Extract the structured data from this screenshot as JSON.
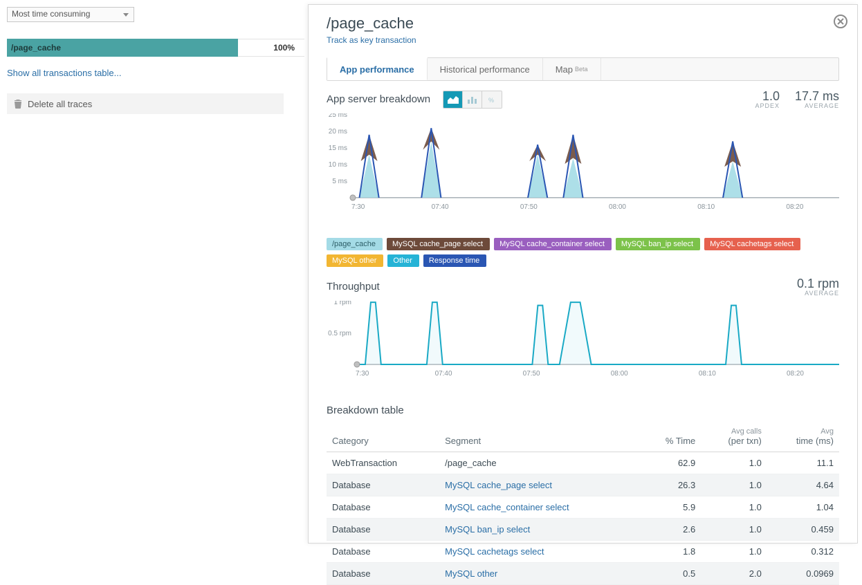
{
  "sidebar": {
    "sort_label": "Most time consuming",
    "txn": {
      "name": "/page_cache",
      "pct": "100%",
      "bar_color": "#4aa3a3",
      "bar_width_pct": 100
    },
    "show_all": "Show all transactions table...",
    "delete_traces": "Delete all traces"
  },
  "panel": {
    "title": "/page_cache",
    "track_link": "Track as key transaction",
    "tabs": [
      {
        "label": "App performance",
        "active": true
      },
      {
        "label": "Historical performance",
        "active": false
      },
      {
        "label": "Map",
        "badge": "Beta",
        "active": false
      }
    ]
  },
  "breakdown_chart": {
    "title": "App server breakdown",
    "apdex": {
      "value": "1.0",
      "label": "APDEX"
    },
    "avg": {
      "value": "17.7 ms",
      "label": "AVERAGE"
    },
    "type": "area",
    "ylim": [
      0,
      25
    ],
    "y_ticks": [
      5,
      10,
      15,
      20,
      25
    ],
    "y_unit": "ms",
    "x_ticks": [
      "7:30",
      "07:40",
      "07:50",
      "08:00",
      "08:10",
      "08:20"
    ],
    "x_max_minutes": 55,
    "colors": {
      "page_cache": "#a4dbe6",
      "mysql_cache_page": "#6d4a3a",
      "mysql_cache_container": "#9a5fbf",
      "mysql_ban_ip": "#7cc24a",
      "mysql_cachetags": "#e6614e",
      "mysql_other": "#f2b632",
      "other": "#25b3d6",
      "response_time": "#2a56b3",
      "axis": "#9aa4ab",
      "grid": "#eef0f1"
    },
    "spikes": [
      {
        "x": 2,
        "top_ms": 19,
        "brown_ms": 6
      },
      {
        "x": 9,
        "top_ms": 21,
        "brown_ms": 4
      },
      {
        "x": 21,
        "top_ms": 16,
        "brown_ms": 3
      },
      {
        "x": 25,
        "top_ms": 19,
        "brown_ms": 7
      },
      {
        "x": 43,
        "top_ms": 17,
        "brown_ms": 6
      }
    ]
  },
  "legend": [
    {
      "label": "/page_cache",
      "color": "#a4dbe6",
      "text": "#2c5d66"
    },
    {
      "label": "MySQL cache_page select",
      "color": "#6d4a3a"
    },
    {
      "label": "MySQL cache_container select",
      "color": "#9a5fbf"
    },
    {
      "label": "MySQL ban_ip select",
      "color": "#7cc24a"
    },
    {
      "label": "MySQL cachetags select",
      "color": "#e6614e"
    },
    {
      "label": "MySQL other",
      "color": "#f2b632"
    },
    {
      "label": "Other",
      "color": "#25b3d6"
    },
    {
      "label": "Response time",
      "color": "#2a56b3"
    }
  ],
  "throughput_chart": {
    "title": "Throughput",
    "avg": {
      "value": "0.1 rpm",
      "label": "AVERAGE"
    },
    "type": "line",
    "ylim": [
      0,
      1
    ],
    "y_ticks": [
      0.5,
      1
    ],
    "y_unit": "rpm",
    "x_ticks": [
      "7:30",
      "07:40",
      "07:50",
      "08:00",
      "08:10",
      "08:20"
    ],
    "x_max_minutes": 55,
    "line_color": "#19a9c5",
    "fill_color": "#c6ecf3",
    "spikes": [
      {
        "x": 2,
        "val": 1.0
      },
      {
        "x": 9,
        "val": 1.0
      },
      {
        "x": 21,
        "val": 0.95
      },
      {
        "x": 25,
        "val": 1.0,
        "wide": true
      },
      {
        "x": 43,
        "val": 0.95
      }
    ]
  },
  "breakdown_table": {
    "title": "Breakdown table",
    "columns": [
      "Category",
      "Segment",
      "% Time",
      "Avg calls\n(per txn)",
      "Avg\ntime (ms)"
    ],
    "rows": [
      {
        "cat": "WebTransaction",
        "seg": "/page_cache",
        "seg_link": false,
        "pct": "62.9",
        "calls": "1.0",
        "time": "11.1"
      },
      {
        "cat": "Database",
        "seg": "MySQL cache_page select",
        "seg_link": true,
        "pct": "26.3",
        "calls": "1.0",
        "time": "4.64"
      },
      {
        "cat": "Database",
        "seg": "MySQL cache_container select",
        "seg_link": true,
        "pct": "5.9",
        "calls": "1.0",
        "time": "1.04"
      },
      {
        "cat": "Database",
        "seg": "MySQL ban_ip select",
        "seg_link": true,
        "pct": "2.6",
        "calls": "1.0",
        "time": "0.459"
      },
      {
        "cat": "Database",
        "seg": "MySQL cachetags select",
        "seg_link": true,
        "pct": "1.8",
        "calls": "1.0",
        "time": "0.312"
      },
      {
        "cat": "Database",
        "seg": "MySQL other",
        "seg_link": true,
        "pct": "0.5",
        "calls": "2.0",
        "time": "0.0969"
      }
    ]
  }
}
